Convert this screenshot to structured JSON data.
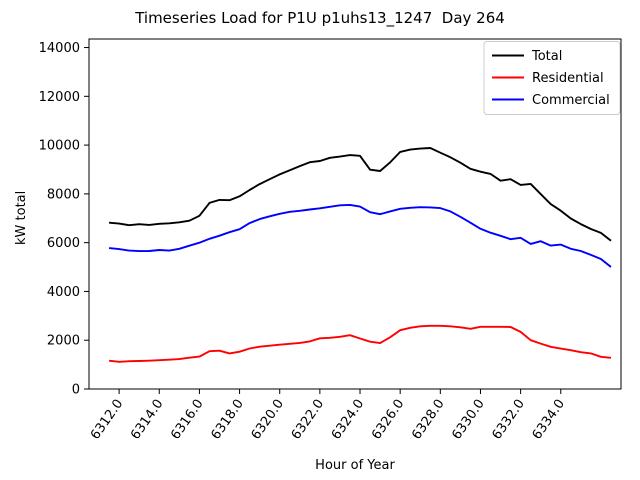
{
  "figure": {
    "background": "#ffffff",
    "frame_color": "#000000"
  },
  "legend": {
    "background": "#ffffff",
    "border_color": "#cccccc"
  },
  "chart_data": {
    "type": "line",
    "title": "Timeseries Load for P1U p1uhs13_1247  Day 264",
    "xlabel": "Hour of Year",
    "ylabel": "kW total",
    "grid": false,
    "legend_position": "upper right",
    "xlim": [
      6310.5,
      6337.0
    ],
    "ylim": [
      0,
      14350
    ],
    "xticks": [
      "6312.0",
      "6314.0",
      "6316.0",
      "6318.0",
      "6320.0",
      "6322.0",
      "6324.0",
      "6326.0",
      "6328.0",
      "6330.0",
      "6332.0",
      "6334.0"
    ],
    "yticks": [
      "0",
      "2000",
      "4000",
      "6000",
      "8000",
      "10000",
      "12000",
      "14000"
    ],
    "x": [
      6311.5,
      6312.0,
      6312.5,
      6313.0,
      6313.5,
      6314.0,
      6314.5,
      6315.0,
      6315.5,
      6316.0,
      6316.5,
      6317.0,
      6317.5,
      6318.0,
      6318.5,
      6319.0,
      6319.5,
      6320.0,
      6320.5,
      6321.0,
      6321.5,
      6322.0,
      6322.5,
      6323.0,
      6323.5,
      6324.0,
      6324.5,
      6325.0,
      6325.5,
      6326.0,
      6326.5,
      6327.0,
      6327.5,
      6328.0,
      6328.5,
      6329.0,
      6329.5,
      6330.0,
      6330.5,
      6331.0,
      6331.5,
      6332.0,
      6332.5,
      6333.0,
      6333.5,
      6334.0,
      6334.5,
      6335.0,
      6335.5,
      6336.0,
      6336.5
    ],
    "series": [
      {
        "name": "Total",
        "color": "#000000",
        "values": [
          6820,
          6780,
          6715,
          6755,
          6730,
          6775,
          6795,
          6835,
          6900,
          7100,
          7630,
          7755,
          7740,
          7900,
          8160,
          8400,
          8600,
          8800,
          8970,
          9140,
          9300,
          9350,
          9480,
          9530,
          9590,
          9560,
          8990,
          8940,
          9290,
          9720,
          9815,
          9855,
          9880,
          9690,
          9500,
          9280,
          9030,
          8910,
          8820,
          8540,
          8600,
          8370,
          8410,
          7990,
          7580,
          7310,
          6990,
          6760,
          6560,
          6400,
          6080
        ]
      },
      {
        "name": "Residential",
        "color": "#ff0000",
        "values": [
          1160,
          1115,
          1140,
          1150,
          1160,
          1180,
          1200,
          1225,
          1285,
          1330,
          1550,
          1570,
          1460,
          1530,
          1660,
          1735,
          1775,
          1815,
          1855,
          1890,
          1950,
          2080,
          2100,
          2140,
          2205,
          2070,
          1940,
          1880,
          2120,
          2410,
          2510,
          2570,
          2590,
          2590,
          2570,
          2530,
          2470,
          2550,
          2550,
          2550,
          2540,
          2340,
          2000,
          1860,
          1730,
          1655,
          1590,
          1510,
          1460,
          1320,
          1280
        ]
      },
      {
        "name": "Commercial",
        "color": "#0000ff",
        "values": [
          5775,
          5735,
          5675,
          5655,
          5660,
          5700,
          5675,
          5750,
          5875,
          6000,
          6160,
          6285,
          6430,
          6550,
          6800,
          6965,
          7080,
          7185,
          7265,
          7305,
          7360,
          7410,
          7470,
          7530,
          7550,
          7480,
          7250,
          7165,
          7280,
          7390,
          7430,
          7455,
          7445,
          7415,
          7280,
          7060,
          6820,
          6570,
          6410,
          6280,
          6140,
          6200,
          5950,
          6060,
          5880,
          5920,
          5750,
          5660,
          5500,
          5330,
          5000
        ]
      }
    ]
  }
}
